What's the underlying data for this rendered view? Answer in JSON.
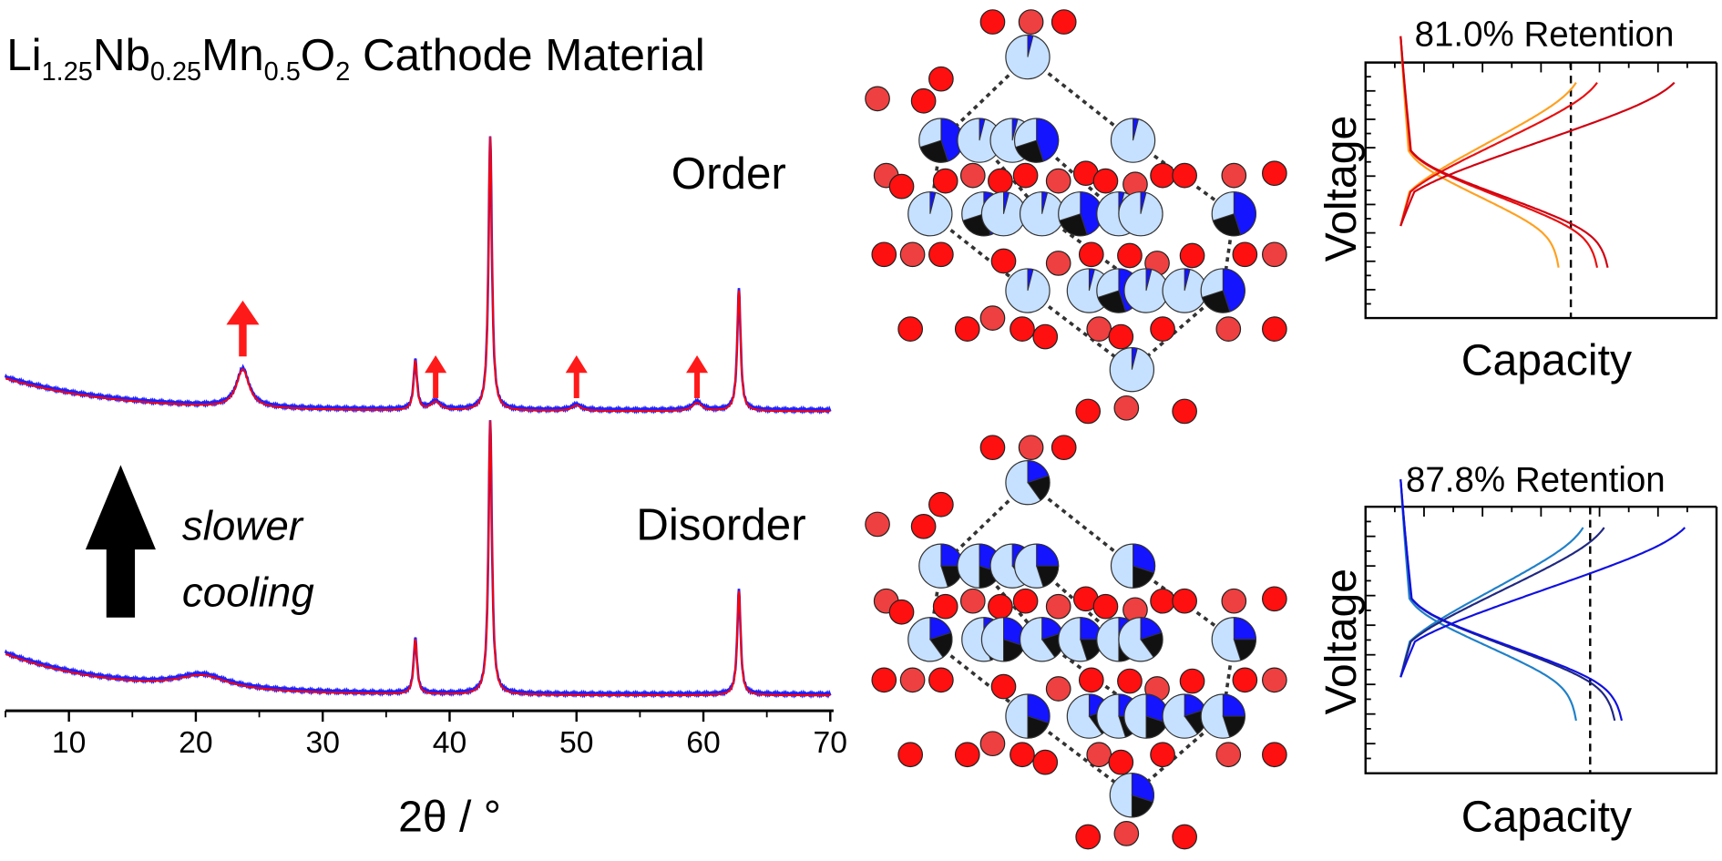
{
  "title": {
    "parts": [
      {
        "text": "Li",
        "sub": false
      },
      {
        "text": "1.25",
        "sub": true
      },
      {
        "text": "Nb",
        "sub": false
      },
      {
        "text": "0.25",
        "sub": true
      },
      {
        "text": "Mn",
        "sub": false
      },
      {
        "text": "0.5",
        "sub": true
      },
      {
        "text": "O",
        "sub": false
      },
      {
        "text": "2",
        "sub": true
      },
      {
        "text": " Cathode Material",
        "sub": false
      }
    ]
  },
  "annotations": {
    "order": "Order",
    "disorder": "Disorder",
    "slower": "slower",
    "cooling": "cooling"
  },
  "colors": {
    "observed": "#2020ff",
    "fit": "#ff0000",
    "arrow": "#ff1a1a",
    "li": "#c6e0ff",
    "nb": "#1414ff",
    "mn": "#111111",
    "oxygen": "#ff1010"
  },
  "chart_data": [
    {
      "type": "line",
      "title": "",
      "xlabel": "2θ / °",
      "ylabel": "",
      "xlim": [
        5,
        70
      ],
      "xticks": [
        "10",
        "20",
        "30",
        "40",
        "50",
        "60",
        "70"
      ],
      "xtick_values": [
        10,
        20,
        30,
        40,
        50,
        60,
        70
      ],
      "grid": false,
      "series": [
        {
          "name": "Order",
          "peaks": [
            [
              23.7,
              14
            ],
            [
              37.3,
              18
            ],
            [
              38.9,
              3
            ],
            [
              43.2,
              100
            ],
            [
              50.0,
              2
            ],
            [
              59.5,
              3
            ],
            [
              62.8,
              44
            ]
          ],
          "background_at_5": 12
        },
        {
          "name": "Disorder",
          "peaks": [
            [
              20.5,
              5
            ],
            [
              37.3,
              20
            ],
            [
              43.2,
              100
            ],
            [
              62.8,
              38
            ]
          ],
          "background_at_5": 15
        }
      ],
      "superstructure_arrows_at": [
        23.7,
        38.9,
        50.0,
        59.5
      ]
    },
    {
      "type": "line",
      "title": "81.0% Retention",
      "xlabel": "Capacity",
      "ylabel": "Voltage",
      "dashed_line_at_capacity": 0.585,
      "cycles": [
        {
          "color": "#ffa020",
          "charge_end": 0.6,
          "discharge_end": 0.55
        },
        {
          "color": "#e81010",
          "charge_end": 0.66,
          "discharge_end": 0.66
        },
        {
          "color": "#d00010",
          "charge_end": 0.88,
          "discharge_end": 0.69
        }
      ]
    },
    {
      "type": "line",
      "title": "87.8% Retention",
      "xlabel": "Capacity",
      "ylabel": "Voltage",
      "dashed_line_at_capacity": 0.64,
      "cycles": [
        {
          "color": "#2080c8",
          "charge_end": 0.62,
          "discharge_end": 0.6
        },
        {
          "color": "#202880",
          "charge_end": 0.68,
          "discharge_end": 0.71
        },
        {
          "color": "#1010e0",
          "charge_end": 0.91,
          "discharge_end": 0.73
        }
      ]
    }
  ]
}
